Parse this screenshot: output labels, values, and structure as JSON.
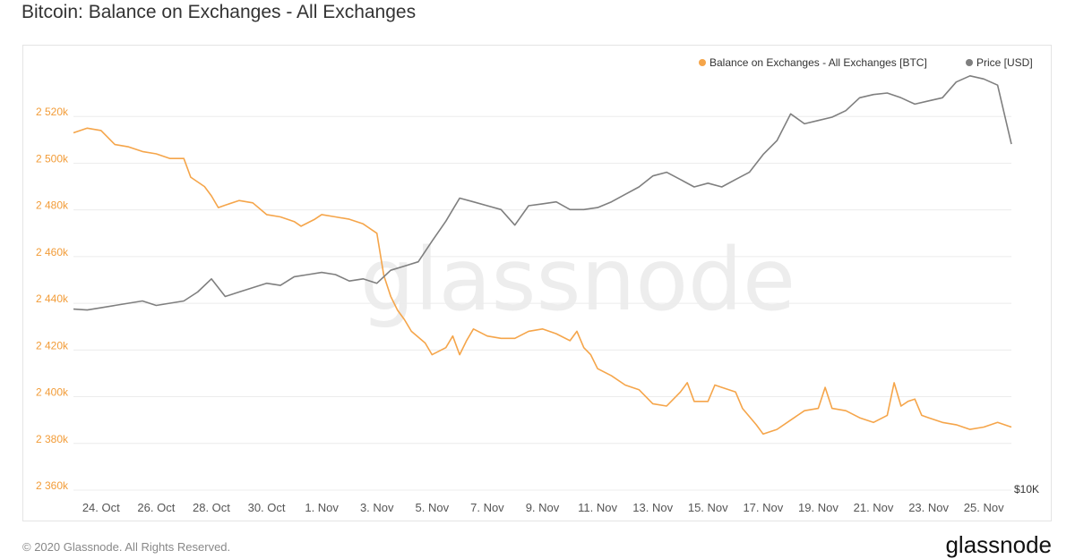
{
  "title": "Bitcoin: Balance on Exchanges - All Exchanges",
  "watermark": "glassnode",
  "footer": {
    "copyright": "© 2020 Glassnode. All Rights Reserved.",
    "logo": "glassnode"
  },
  "colors": {
    "balance": "#f5a54a",
    "price": "#7f7f7f",
    "grid": "#ececec",
    "axis_text_left": "#f29c38"
  },
  "chart_data": {
    "type": "line",
    "title": "Bitcoin: Balance on Exchanges - All Exchanges",
    "x_ticks": [
      "24. Oct",
      "26. Oct",
      "28. Oct",
      "30. Oct",
      "1. Nov",
      "3. Nov",
      "5. Nov",
      "7. Nov",
      "9. Nov",
      "11. Nov",
      "13. Nov",
      "15. Nov",
      "17. Nov",
      "19. Nov",
      "21. Nov",
      "23. Nov",
      "25. Nov"
    ],
    "x_range": [
      "2020-10-23",
      "2020-11-26"
    ],
    "y_left": {
      "ticks": [
        "2 360k",
        "2 380k",
        "2 400k",
        "2 420k",
        "2 440k",
        "2 460k",
        "2 480k",
        "2 500k",
        "2 520k"
      ],
      "range": [
        2360000,
        2540000
      ]
    },
    "y_right": {
      "ticks": [
        "$10K"
      ],
      "scale": "log"
    },
    "legend": {
      "placement": "top-right",
      "entries": [
        "Balance on Exchanges - All Exchanges [BTC]",
        "Price [USD]"
      ]
    },
    "grid": true,
    "series": [
      {
        "name": "Balance on Exchanges - All Exchanges [BTC]",
        "axis": "left",
        "points": [
          [
            "2020-10-23",
            2513000
          ],
          [
            "2020-10-23T12",
            2515000
          ],
          [
            "2020-10-24",
            2514000
          ],
          [
            "2020-10-24T12",
            2508000
          ],
          [
            "2020-10-25",
            2507000
          ],
          [
            "2020-10-25T12",
            2505000
          ],
          [
            "2020-10-26",
            2504000
          ],
          [
            "2020-10-26T12",
            2502000
          ],
          [
            "2020-10-27",
            2502000
          ],
          [
            "2020-10-27T06",
            2494000
          ],
          [
            "2020-10-27T18",
            2490000
          ],
          [
            "2020-10-28",
            2486000
          ],
          [
            "2020-10-28T06",
            2481000
          ],
          [
            "2020-10-28T12",
            2482000
          ],
          [
            "2020-10-29",
            2484000
          ],
          [
            "2020-10-29T12",
            2483000
          ],
          [
            "2020-10-30",
            2478000
          ],
          [
            "2020-10-30T12",
            2477000
          ],
          [
            "2020-10-31",
            2475000
          ],
          [
            "2020-10-31T06",
            2473000
          ],
          [
            "2020-10-31T18",
            2476000
          ],
          [
            "2020-11-01",
            2478000
          ],
          [
            "2020-11-01T12",
            2477000
          ],
          [
            "2020-11-02",
            2476000
          ],
          [
            "2020-11-02T12",
            2474000
          ],
          [
            "2020-11-03",
            2470000
          ],
          [
            "2020-11-03T06",
            2452000
          ],
          [
            "2020-11-03T12",
            2443000
          ],
          [
            "2020-11-03T18",
            2437000
          ],
          [
            "2020-11-04",
            2433000
          ],
          [
            "2020-11-04T06",
            2428000
          ],
          [
            "2020-11-04T18",
            2423000
          ],
          [
            "2020-11-05",
            2418000
          ],
          [
            "2020-11-05T12",
            2421000
          ],
          [
            "2020-11-05T18",
            2426000
          ],
          [
            "2020-11-06",
            2418000
          ],
          [
            "2020-11-06T06",
            2424000
          ],
          [
            "2020-11-06T12",
            2429000
          ],
          [
            "2020-11-07",
            2426000
          ],
          [
            "2020-11-07T12",
            2425000
          ],
          [
            "2020-11-08",
            2425000
          ],
          [
            "2020-11-08T12",
            2428000
          ],
          [
            "2020-11-09",
            2429000
          ],
          [
            "2020-11-09T12",
            2427000
          ],
          [
            "2020-11-10",
            2424000
          ],
          [
            "2020-11-10T06",
            2428000
          ],
          [
            "2020-11-10T12",
            2421000
          ],
          [
            "2020-11-10T18",
            2418000
          ],
          [
            "2020-11-11",
            2412000
          ],
          [
            "2020-11-11T12",
            2409000
          ],
          [
            "2020-11-12",
            2405000
          ],
          [
            "2020-11-12T12",
            2403000
          ],
          [
            "2020-11-13",
            2397000
          ],
          [
            "2020-11-13T12",
            2396000
          ],
          [
            "2020-11-14",
            2402000
          ],
          [
            "2020-11-14T06",
            2406000
          ],
          [
            "2020-11-14T12",
            2398000
          ],
          [
            "2020-11-15",
            2398000
          ],
          [
            "2020-11-15T06",
            2405000
          ],
          [
            "2020-11-15T12",
            2404000
          ],
          [
            "2020-11-16",
            2402000
          ],
          [
            "2020-11-16T06",
            2395000
          ],
          [
            "2020-11-16T18",
            2388000
          ],
          [
            "2020-11-17",
            2384000
          ],
          [
            "2020-11-17T12",
            2386000
          ],
          [
            "2020-11-18",
            2390000
          ],
          [
            "2020-11-18T12",
            2394000
          ],
          [
            "2020-11-19",
            2395000
          ],
          [
            "2020-11-19T06",
            2404000
          ],
          [
            "2020-11-19T12",
            2395000
          ],
          [
            "2020-11-20",
            2394000
          ],
          [
            "2020-11-20T12",
            2391000
          ],
          [
            "2020-11-21",
            2389000
          ],
          [
            "2020-11-21T12",
            2392000
          ],
          [
            "2020-11-21T18",
            2406000
          ],
          [
            "2020-11-22",
            2396000
          ],
          [
            "2020-11-22T06",
            2398000
          ],
          [
            "2020-11-22T12",
            2399000
          ],
          [
            "2020-11-22T18",
            2392000
          ],
          [
            "2020-11-23",
            2391000
          ],
          [
            "2020-11-23T12",
            2389000
          ],
          [
            "2020-11-24",
            2388000
          ],
          [
            "2020-11-24T12",
            2386000
          ],
          [
            "2020-11-25",
            2387000
          ],
          [
            "2020-11-25T12",
            2389000
          ],
          [
            "2020-11-26",
            2387000
          ]
        ]
      },
      {
        "name": "Price [USD]",
        "axis": "right",
        "points": [
          [
            "2020-10-23",
            12920
          ],
          [
            "2020-10-23T12",
            12900
          ],
          [
            "2020-10-24",
            12950
          ],
          [
            "2020-10-24T12",
            13000
          ],
          [
            "2020-10-25",
            13050
          ],
          [
            "2020-10-25T12",
            13100
          ],
          [
            "2020-10-26",
            13000
          ],
          [
            "2020-10-26T12",
            13050
          ],
          [
            "2020-10-27",
            13100
          ],
          [
            "2020-10-27T12",
            13300
          ],
          [
            "2020-10-28",
            13600
          ],
          [
            "2020-10-28T12",
            13200
          ],
          [
            "2020-10-29",
            13300
          ],
          [
            "2020-10-29T12",
            13400
          ],
          [
            "2020-10-30",
            13500
          ],
          [
            "2020-10-30T12",
            13450
          ],
          [
            "2020-10-31",
            13650
          ],
          [
            "2020-10-31T12",
            13700
          ],
          [
            "2020-11-01",
            13750
          ],
          [
            "2020-11-01T12",
            13700
          ],
          [
            "2020-11-02",
            13550
          ],
          [
            "2020-11-02T12",
            13600
          ],
          [
            "2020-11-03",
            13500
          ],
          [
            "2020-11-03T12",
            13800
          ],
          [
            "2020-11-04",
            13900
          ],
          [
            "2020-11-04T12",
            14000
          ],
          [
            "2020-11-05",
            14500
          ],
          [
            "2020-11-05T12",
            15000
          ],
          [
            "2020-11-06",
            15600
          ],
          [
            "2020-11-06T12",
            15500
          ],
          [
            "2020-11-07",
            15400
          ],
          [
            "2020-11-07T12",
            15300
          ],
          [
            "2020-11-08",
            14900
          ],
          [
            "2020-11-08T12",
            15400
          ],
          [
            "2020-11-09",
            15450
          ],
          [
            "2020-11-09T12",
            15500
          ],
          [
            "2020-11-10",
            15300
          ],
          [
            "2020-11-10T12",
            15300
          ],
          [
            "2020-11-11",
            15350
          ],
          [
            "2020-11-11T12",
            15500
          ],
          [
            "2020-11-12",
            15700
          ],
          [
            "2020-11-12T12",
            15900
          ],
          [
            "2020-11-13",
            16200
          ],
          [
            "2020-11-13T12",
            16300
          ],
          [
            "2020-11-14",
            16100
          ],
          [
            "2020-11-14T12",
            15900
          ],
          [
            "2020-11-15",
            16000
          ],
          [
            "2020-11-15T12",
            15900
          ],
          [
            "2020-11-16",
            16100
          ],
          [
            "2020-11-16T12",
            16300
          ],
          [
            "2020-11-17",
            16800
          ],
          [
            "2020-11-17T12",
            17200
          ],
          [
            "2020-11-18",
            18000
          ],
          [
            "2020-11-18T12",
            17700
          ],
          [
            "2020-11-19",
            17800
          ],
          [
            "2020-11-19T12",
            17900
          ],
          [
            "2020-11-20",
            18100
          ],
          [
            "2020-11-20T12",
            18500
          ],
          [
            "2020-11-21",
            18600
          ],
          [
            "2020-11-21T12",
            18650
          ],
          [
            "2020-11-22",
            18500
          ],
          [
            "2020-11-22T12",
            18300
          ],
          [
            "2020-11-23",
            18400
          ],
          [
            "2020-11-23T12",
            18500
          ],
          [
            "2020-11-24",
            19000
          ],
          [
            "2020-11-24T12",
            19200
          ],
          [
            "2020-11-25",
            19100
          ],
          [
            "2020-11-25T12",
            18900
          ],
          [
            "2020-11-26",
            17100
          ]
        ]
      }
    ]
  }
}
